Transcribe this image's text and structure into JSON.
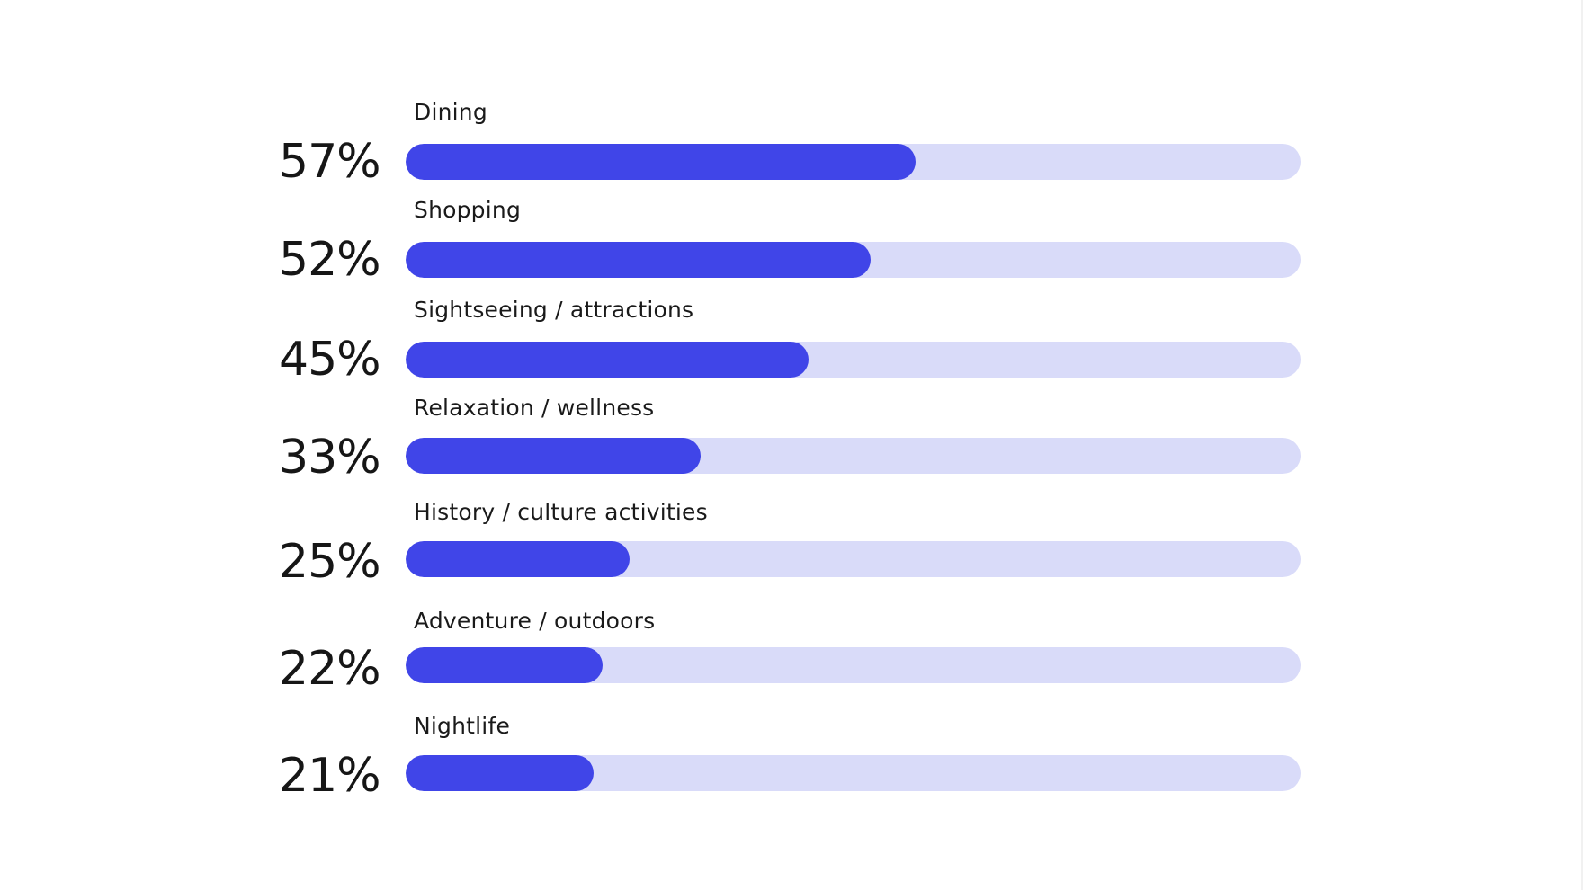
{
  "colors": {
    "fill": "#4045E8",
    "track": "#D9DBF9",
    "text": "#161616",
    "background": "#FFFFFF"
  },
  "rows": [
    {
      "label": "Dining",
      "value_text": "57%",
      "value": 57
    },
    {
      "label": "Shopping",
      "value_text": "52%",
      "value": 52
    },
    {
      "label": "Sightseeing / attractions",
      "value_text": "45%",
      "value": 45
    },
    {
      "label": "Relaxation / wellness",
      "value_text": "33%",
      "value": 33
    },
    {
      "label": "History / culture activities",
      "value_text": "25%",
      "value": 25
    },
    {
      "label": "Adventure / outdoors",
      "value_text": "22%",
      "value": 22
    },
    {
      "label": "Nightlife",
      "value_text": "21%",
      "value": 21
    }
  ],
  "chart_data": {
    "type": "bar",
    "orientation": "horizontal",
    "title": "",
    "xlabel": "",
    "ylabel": "",
    "categories": [
      "Dining",
      "Shopping",
      "Sightseeing / attractions",
      "Relaxation / wellness",
      "History / culture activities",
      "Adventure / outdoors",
      "Nightlife"
    ],
    "values": [
      57,
      52,
      45,
      33,
      25,
      22,
      21
    ],
    "value_labels": [
      "57%",
      "52%",
      "45%",
      "33%",
      "25%",
      "22%",
      "21%"
    ],
    "unit": "%",
    "xlim": [
      0,
      100
    ],
    "grid": false,
    "legend": false
  }
}
